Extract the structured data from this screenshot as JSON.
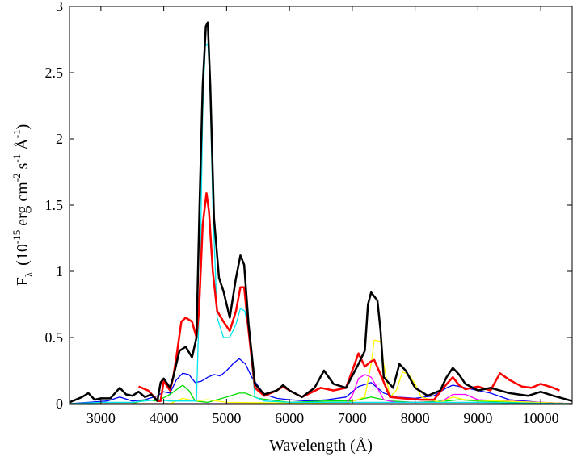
{
  "chart_data": {
    "type": "line",
    "xlabel": "Wavelength (Å)",
    "ylabel": {
      "main": "F",
      "sub": "λ",
      "open": "(10",
      "exp1": "-15",
      "t2": "erg cm",
      "exp2": "-2",
      "t3": "s",
      "exp3": "-1",
      "t4": "Å",
      "exp4": "-1",
      "close": ")"
    },
    "xlim": [
      2500,
      10500
    ],
    "ylim": [
      0,
      3
    ],
    "xticks": [
      3000,
      4000,
      5000,
      6000,
      7000,
      8000,
      9000,
      10000
    ],
    "yticks": [
      0,
      0.5,
      1,
      1.5,
      2,
      2.5,
      3
    ],
    "ytick_labels": [
      "0",
      "0.5",
      "1",
      "1.5",
      "2",
      "2.5",
      "3"
    ],
    "grid": false,
    "series": [
      {
        "color": "#0000ff",
        "points": [
          [
            2500,
            0
          ],
          [
            2800,
            0.01
          ],
          [
            3100,
            0.02
          ],
          [
            3300,
            0.05
          ],
          [
            3500,
            0.02
          ],
          [
            3700,
            0.03
          ],
          [
            3900,
            0.06
          ],
          [
            4000,
            0.09
          ],
          [
            4100,
            0.08
          ],
          [
            4200,
            0.18
          ],
          [
            4300,
            0.23
          ],
          [
            4400,
            0.22
          ],
          [
            4500,
            0.16
          ],
          [
            4600,
            0.17
          ],
          [
            4700,
            0.2
          ],
          [
            4800,
            0.22
          ],
          [
            4900,
            0.21
          ],
          [
            5000,
            0.25
          ],
          [
            5100,
            0.3
          ],
          [
            5200,
            0.34
          ],
          [
            5300,
            0.3
          ],
          [
            5400,
            0.2
          ],
          [
            5600,
            0.07
          ],
          [
            5800,
            0.04
          ],
          [
            6000,
            0.03
          ],
          [
            6300,
            0.02
          ],
          [
            6600,
            0.03
          ],
          [
            6900,
            0.05
          ],
          [
            7100,
            0.13
          ],
          [
            7300,
            0.16
          ],
          [
            7500,
            0.08
          ],
          [
            7700,
            0.05
          ],
          [
            8000,
            0.04
          ],
          [
            8300,
            0.06
          ],
          [
            8500,
            0.12
          ],
          [
            8600,
            0.14
          ],
          [
            8800,
            0.12
          ],
          [
            9000,
            0.1
          ],
          [
            9200,
            0.08
          ],
          [
            9500,
            0.03
          ],
          [
            10000,
            0.01
          ],
          [
            10500,
            0
          ]
        ]
      },
      {
        "color": "#00dd00",
        "points": [
          [
            2500,
            0
          ],
          [
            3500,
            0
          ],
          [
            3700,
            0.03
          ],
          [
            3900,
            0.02
          ],
          [
            4100,
            0.07
          ],
          [
            4300,
            0.14
          ],
          [
            4400,
            0.1
          ],
          [
            4500,
            0.02
          ],
          [
            4700,
            0.01
          ],
          [
            5000,
            0.05
          ],
          [
            5200,
            0.08
          ],
          [
            5300,
            0.08
          ],
          [
            5500,
            0.04
          ],
          [
            6000,
            0.01
          ],
          [
            6600,
            0.02
          ],
          [
            7000,
            0.02
          ],
          [
            7300,
            0.05
          ],
          [
            7600,
            0.02
          ],
          [
            8000,
            0.01
          ],
          [
            8500,
            0.02
          ],
          [
            8700,
            0.03
          ],
          [
            9000,
            0.02
          ],
          [
            10500,
            0
          ]
        ]
      },
      {
        "color": "#ff00ff",
        "points": [
          [
            2500,
            0
          ],
          [
            6900,
            0
          ],
          [
            7000,
            0.06
          ],
          [
            7100,
            0.19
          ],
          [
            7200,
            0.22
          ],
          [
            7300,
            0.2
          ],
          [
            7400,
            0.12
          ],
          [
            7500,
            0.03
          ],
          [
            7700,
            0.01
          ],
          [
            8400,
            0.01
          ],
          [
            8600,
            0.07
          ],
          [
            8800,
            0.07
          ],
          [
            9000,
            0.03
          ],
          [
            10500,
            0
          ]
        ]
      },
      {
        "color": "#ffff00",
        "points": [
          [
            2500,
            0
          ],
          [
            4100,
            0
          ],
          [
            4300,
            0.04
          ],
          [
            4500,
            0.02
          ],
          [
            4700,
            0.03
          ],
          [
            5000,
            0.01
          ],
          [
            6900,
            0
          ],
          [
            7200,
            0.05
          ],
          [
            7300,
            0.3
          ],
          [
            7350,
            0.48
          ],
          [
            7450,
            0.47
          ],
          [
            7500,
            0.3
          ],
          [
            7600,
            0.05
          ],
          [
            7700,
            0.1
          ],
          [
            7800,
            0.24
          ],
          [
            7900,
            0.22
          ],
          [
            8000,
            0.15
          ],
          [
            8100,
            0.05
          ],
          [
            8400,
            0.01
          ],
          [
            8600,
            0.05
          ],
          [
            8800,
            0.03
          ],
          [
            10500,
            0
          ]
        ]
      },
      {
        "color": "#00e5ee",
        "points": [
          [
            2500,
            0
          ],
          [
            3000,
            0.01
          ],
          [
            3500,
            0.01
          ],
          [
            3900,
            0.03
          ],
          [
            4100,
            0.02
          ],
          [
            4300,
            0.02
          ],
          [
            4520,
            0.02
          ],
          [
            4580,
            1.0
          ],
          [
            4620,
            2.2
          ],
          [
            4660,
            2.7
          ],
          [
            4700,
            2.72
          ],
          [
            4730,
            2.5
          ],
          [
            4780,
            1.5
          ],
          [
            4850,
            0.65
          ],
          [
            4950,
            0.5
          ],
          [
            5050,
            0.5
          ],
          [
            5150,
            0.6
          ],
          [
            5220,
            0.72
          ],
          [
            5290,
            0.7
          ],
          [
            5350,
            0.55
          ],
          [
            5450,
            0.05
          ],
          [
            5600,
            0.02
          ],
          [
            6000,
            0.01
          ],
          [
            7000,
            0.01
          ],
          [
            8000,
            0.01
          ],
          [
            9000,
            0.01
          ],
          [
            10500,
            0
          ]
        ]
      },
      {
        "color": "#ff0000",
        "width": 2.5,
        "points": [
          [
            3600,
            0.13
          ],
          [
            3750,
            0.1
          ],
          [
            3850,
            0.05
          ],
          [
            3900,
            0.02
          ],
          [
            3950,
            0.02
          ],
          [
            4000,
            0.17
          ],
          [
            4100,
            0.1
          ],
          [
            4150,
            0.2
          ],
          [
            4200,
            0.35
          ],
          [
            4280,
            0.62
          ],
          [
            4350,
            0.65
          ],
          [
            4450,
            0.62
          ],
          [
            4520,
            0.5
          ],
          [
            4560,
            0.7
          ],
          [
            4620,
            1.35
          ],
          [
            4680,
            1.59
          ],
          [
            4720,
            1.45
          ],
          [
            4780,
            1.0
          ],
          [
            4850,
            0.7
          ],
          [
            4950,
            0.62
          ],
          [
            5050,
            0.55
          ],
          [
            5150,
            0.7
          ],
          [
            5220,
            0.88
          ],
          [
            5280,
            0.88
          ],
          [
            5350,
            0.55
          ],
          [
            5450,
            0.12
          ],
          [
            5600,
            0.06
          ],
          [
            5800,
            0.1
          ],
          [
            5900,
            0.13
          ],
          [
            6000,
            0.1
          ],
          [
            6200,
            0.05
          ],
          [
            6500,
            0.12
          ],
          [
            6700,
            0.1
          ],
          [
            6900,
            0.12
          ],
          [
            7000,
            0.25
          ],
          [
            7100,
            0.38
          ],
          [
            7200,
            0.28
          ],
          [
            7300,
            0.32
          ],
          [
            7350,
            0.33
          ],
          [
            7450,
            0.22
          ],
          [
            7600,
            0.05
          ],
          [
            7800,
            0.04
          ],
          [
            8100,
            0.03
          ],
          [
            8300,
            0.03
          ],
          [
            8450,
            0.12
          ],
          [
            8600,
            0.2
          ],
          [
            8700,
            0.14
          ],
          [
            8800,
            0.11
          ],
          [
            9000,
            0.13
          ],
          [
            9200,
            0.1
          ],
          [
            9350,
            0.23
          ],
          [
            9500,
            0.18
          ],
          [
            9700,
            0.13
          ],
          [
            9850,
            0.12
          ],
          [
            10000,
            0.15
          ],
          [
            10200,
            0.12
          ],
          [
            10300,
            0.1
          ]
        ]
      },
      {
        "color": "#000000",
        "width": 2.5,
        "points": [
          [
            2500,
            0.01
          ],
          [
            2700,
            0.05
          ],
          [
            2800,
            0.08
          ],
          [
            2900,
            0.03
          ],
          [
            3000,
            0.04
          ],
          [
            3150,
            0.04
          ],
          [
            3300,
            0.12
          ],
          [
            3400,
            0.07
          ],
          [
            3500,
            0.06
          ],
          [
            3600,
            0.09
          ],
          [
            3700,
            0.05
          ],
          [
            3800,
            0.07
          ],
          [
            3900,
            0.02
          ],
          [
            3950,
            0.16
          ],
          [
            4000,
            0.19
          ],
          [
            4100,
            0.12
          ],
          [
            4150,
            0.2
          ],
          [
            4250,
            0.4
          ],
          [
            4350,
            0.43
          ],
          [
            4450,
            0.35
          ],
          [
            4520,
            0.5
          ],
          [
            4570,
            1.5
          ],
          [
            4620,
            2.4
          ],
          [
            4670,
            2.85
          ],
          [
            4700,
            2.88
          ],
          [
            4740,
            2.4
          ],
          [
            4800,
            1.4
          ],
          [
            4880,
            0.95
          ],
          [
            4950,
            0.85
          ],
          [
            5050,
            0.65
          ],
          [
            5150,
            0.95
          ],
          [
            5220,
            1.12
          ],
          [
            5280,
            1.05
          ],
          [
            5350,
            0.6
          ],
          [
            5450,
            0.15
          ],
          [
            5600,
            0.07
          ],
          [
            5800,
            0.1
          ],
          [
            5900,
            0.14
          ],
          [
            6000,
            0.1
          ],
          [
            6200,
            0.05
          ],
          [
            6400,
            0.12
          ],
          [
            6550,
            0.25
          ],
          [
            6700,
            0.15
          ],
          [
            6900,
            0.12
          ],
          [
            7100,
            0.3
          ],
          [
            7200,
            0.4
          ],
          [
            7250,
            0.75
          ],
          [
            7300,
            0.84
          ],
          [
            7400,
            0.78
          ],
          [
            7450,
            0.55
          ],
          [
            7500,
            0.2
          ],
          [
            7650,
            0.12
          ],
          [
            7750,
            0.3
          ],
          [
            7850,
            0.25
          ],
          [
            8000,
            0.12
          ],
          [
            8200,
            0.06
          ],
          [
            8400,
            0.1
          ],
          [
            8500,
            0.2
          ],
          [
            8600,
            0.27
          ],
          [
            8700,
            0.22
          ],
          [
            8800,
            0.15
          ],
          [
            9000,
            0.1
          ],
          [
            9200,
            0.12
          ],
          [
            9500,
            0.08
          ],
          [
            9800,
            0.06
          ],
          [
            10000,
            0.09
          ],
          [
            10200,
            0.06
          ],
          [
            10500,
            0.02
          ]
        ]
      }
    ]
  }
}
